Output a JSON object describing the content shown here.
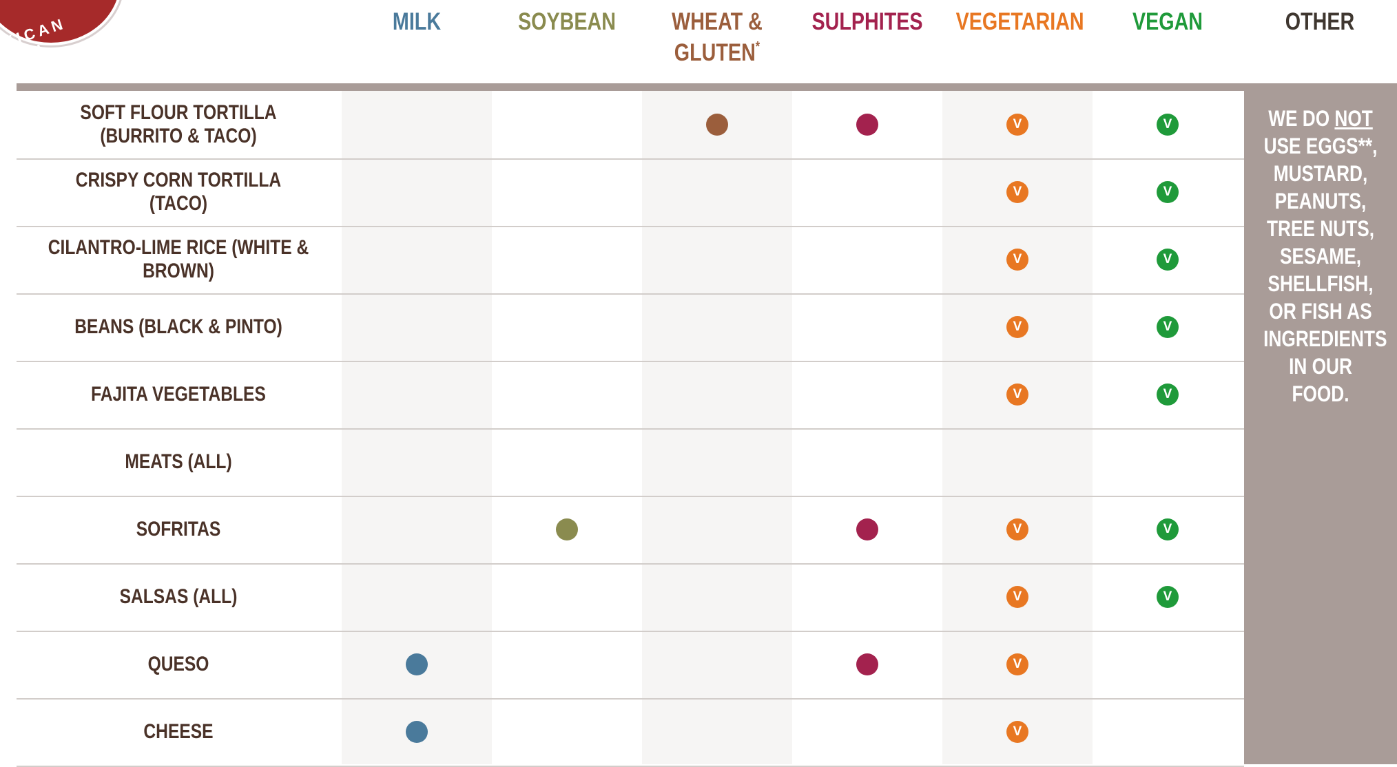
{
  "logo": {
    "text": "XICAN GRI"
  },
  "columns": [
    {
      "key": "milk",
      "label": "MILK",
      "color": "#4a7a9b"
    },
    {
      "key": "soybean",
      "label": "SOYBEAN",
      "color": "#8a8b4f"
    },
    {
      "key": "wheat",
      "label": "WHEAT &",
      "label2": "GLUTEN",
      "footnote": "*",
      "color": "#9b5e3c"
    },
    {
      "key": "sulphites",
      "label": "SULPHITES",
      "color": "#a3224e"
    },
    {
      "key": "vegetarian",
      "label": "VEGETARIAN",
      "color": "#e87722"
    },
    {
      "key": "vegan",
      "label": "VEGAN",
      "color": "#1f9a3a"
    },
    {
      "key": "other",
      "label": "OTHER",
      "color": "#3f3730"
    }
  ],
  "badge_letter": "V",
  "other_note": {
    "line1": "WE DO",
    "emph": "NOT",
    "rest": "USE EGGS**, MUSTARD, PEANUTS, TREE NUTS, SESAME, SHELLFISH, OR FISH AS INGREDIENTS IN OUR FOOD."
  },
  "rows": [
    {
      "label": "SOFT FLOUR TORTILLA (BURRITO & TACO)",
      "milk": false,
      "soybean": false,
      "wheat": true,
      "sulphites": true,
      "vegetarian": true,
      "vegan": true
    },
    {
      "label": "CRISPY CORN TORTILLA (TACO)",
      "milk": false,
      "soybean": false,
      "wheat": false,
      "sulphites": false,
      "vegetarian": true,
      "vegan": true
    },
    {
      "label": "CILANTRO-LIME RICE (WHITE & BROWN)",
      "milk": false,
      "soybean": false,
      "wheat": false,
      "sulphites": false,
      "vegetarian": true,
      "vegan": true
    },
    {
      "label": "BEANS (BLACK & PINTO)",
      "milk": false,
      "soybean": false,
      "wheat": false,
      "sulphites": false,
      "vegetarian": true,
      "vegan": true
    },
    {
      "label": "FAJITA VEGETABLES",
      "milk": false,
      "soybean": false,
      "wheat": false,
      "sulphites": false,
      "vegetarian": true,
      "vegan": true
    },
    {
      "label": "MEATS (ALL)",
      "milk": false,
      "soybean": false,
      "wheat": false,
      "sulphites": false,
      "vegetarian": false,
      "vegan": false
    },
    {
      "label": "SOFRITAS",
      "milk": false,
      "soybean": true,
      "wheat": false,
      "sulphites": true,
      "vegetarian": true,
      "vegan": true
    },
    {
      "label": "SALSAS (ALL)",
      "milk": false,
      "soybean": false,
      "wheat": false,
      "sulphites": false,
      "vegetarian": true,
      "vegan": true
    },
    {
      "label": "QUESO",
      "milk": true,
      "soybean": false,
      "wheat": false,
      "sulphites": true,
      "vegetarian": true,
      "vegan": false
    },
    {
      "label": "CHEESE",
      "milk": true,
      "soybean": false,
      "wheat": false,
      "sulphites": false,
      "vegetarian": true,
      "vegan": false
    }
  ]
}
